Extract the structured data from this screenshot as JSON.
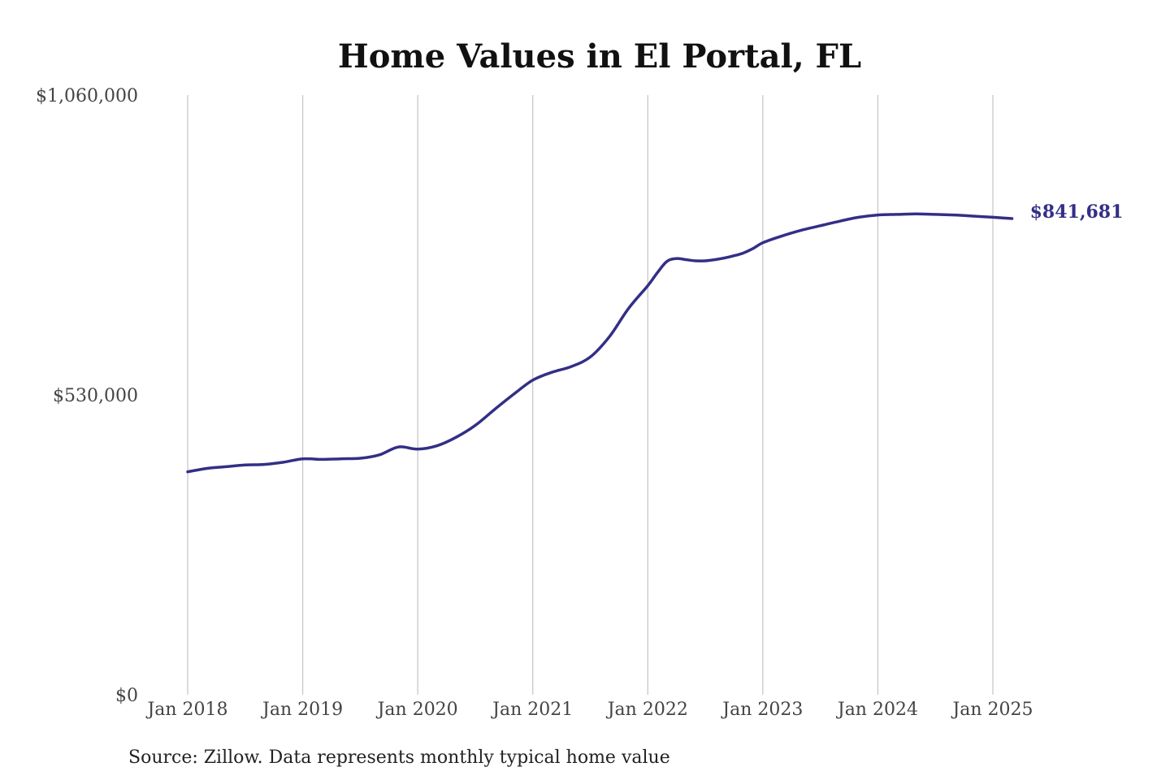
{
  "chart_data": {
    "type": "line",
    "title": "Home Values in El Portal, FL",
    "xlabel": "",
    "ylabel": "",
    "x_ticks": [
      "Jan 2018",
      "Jan 2019",
      "Jan 2020",
      "Jan 2021",
      "Jan 2022",
      "Jan 2023",
      "Jan 2024",
      "Jan 2025"
    ],
    "y_ticks": [
      "$0",
      "$530,000",
      "$1,060,000"
    ],
    "ylim": [
      0,
      1060000
    ],
    "xlim": [
      "2018-01",
      "2025-03"
    ],
    "grid": "vertical",
    "line_color": "#332f86",
    "end_label": "$841,681",
    "series": [
      {
        "x": [
          "2018-01",
          "2018-03",
          "2018-05",
          "2018-07",
          "2018-09",
          "2018-11",
          "2019-01",
          "2019-03",
          "2019-05",
          "2019-07",
          "2019-09",
          "2019-11",
          "2020-01",
          "2020-03",
          "2020-05",
          "2020-07",
          "2020-09",
          "2020-11",
          "2021-01",
          "2021-03",
          "2021-05",
          "2021-07",
          "2021-09",
          "2021-11",
          "2022-01",
          "2022-02",
          "2022-03",
          "2022-04",
          "2022-05",
          "2022-06",
          "2022-07",
          "2022-08",
          "2022-09",
          "2022-10",
          "2022-11",
          "2022-12",
          "2023-01",
          "2023-03",
          "2023-05",
          "2023-07",
          "2023-09",
          "2023-11",
          "2024-01",
          "2024-03",
          "2024-05",
          "2024-07",
          "2024-09",
          "2024-11",
          "2025-01",
          "2025-03"
        ],
        "values": [
          394000,
          400000,
          403000,
          406000,
          407000,
          411000,
          417000,
          416000,
          417000,
          418000,
          424000,
          438000,
          434000,
          440000,
          455000,
          476000,
          504000,
          531000,
          556000,
          570000,
          580000,
          597000,
          633000,
          683000,
          723000,
          746000,
          766000,
          771000,
          769000,
          767000,
          767000,
          769000,
          772000,
          776000,
          781000,
          789000,
          799000,
          811000,
          821000,
          829000,
          837000,
          844000,
          848000,
          849000,
          850000,
          849000,
          848000,
          846000,
          844000,
          841681
        ]
      }
    ]
  },
  "footer": {
    "source": "Source: Zillow. Data represents monthly typical home value"
  }
}
